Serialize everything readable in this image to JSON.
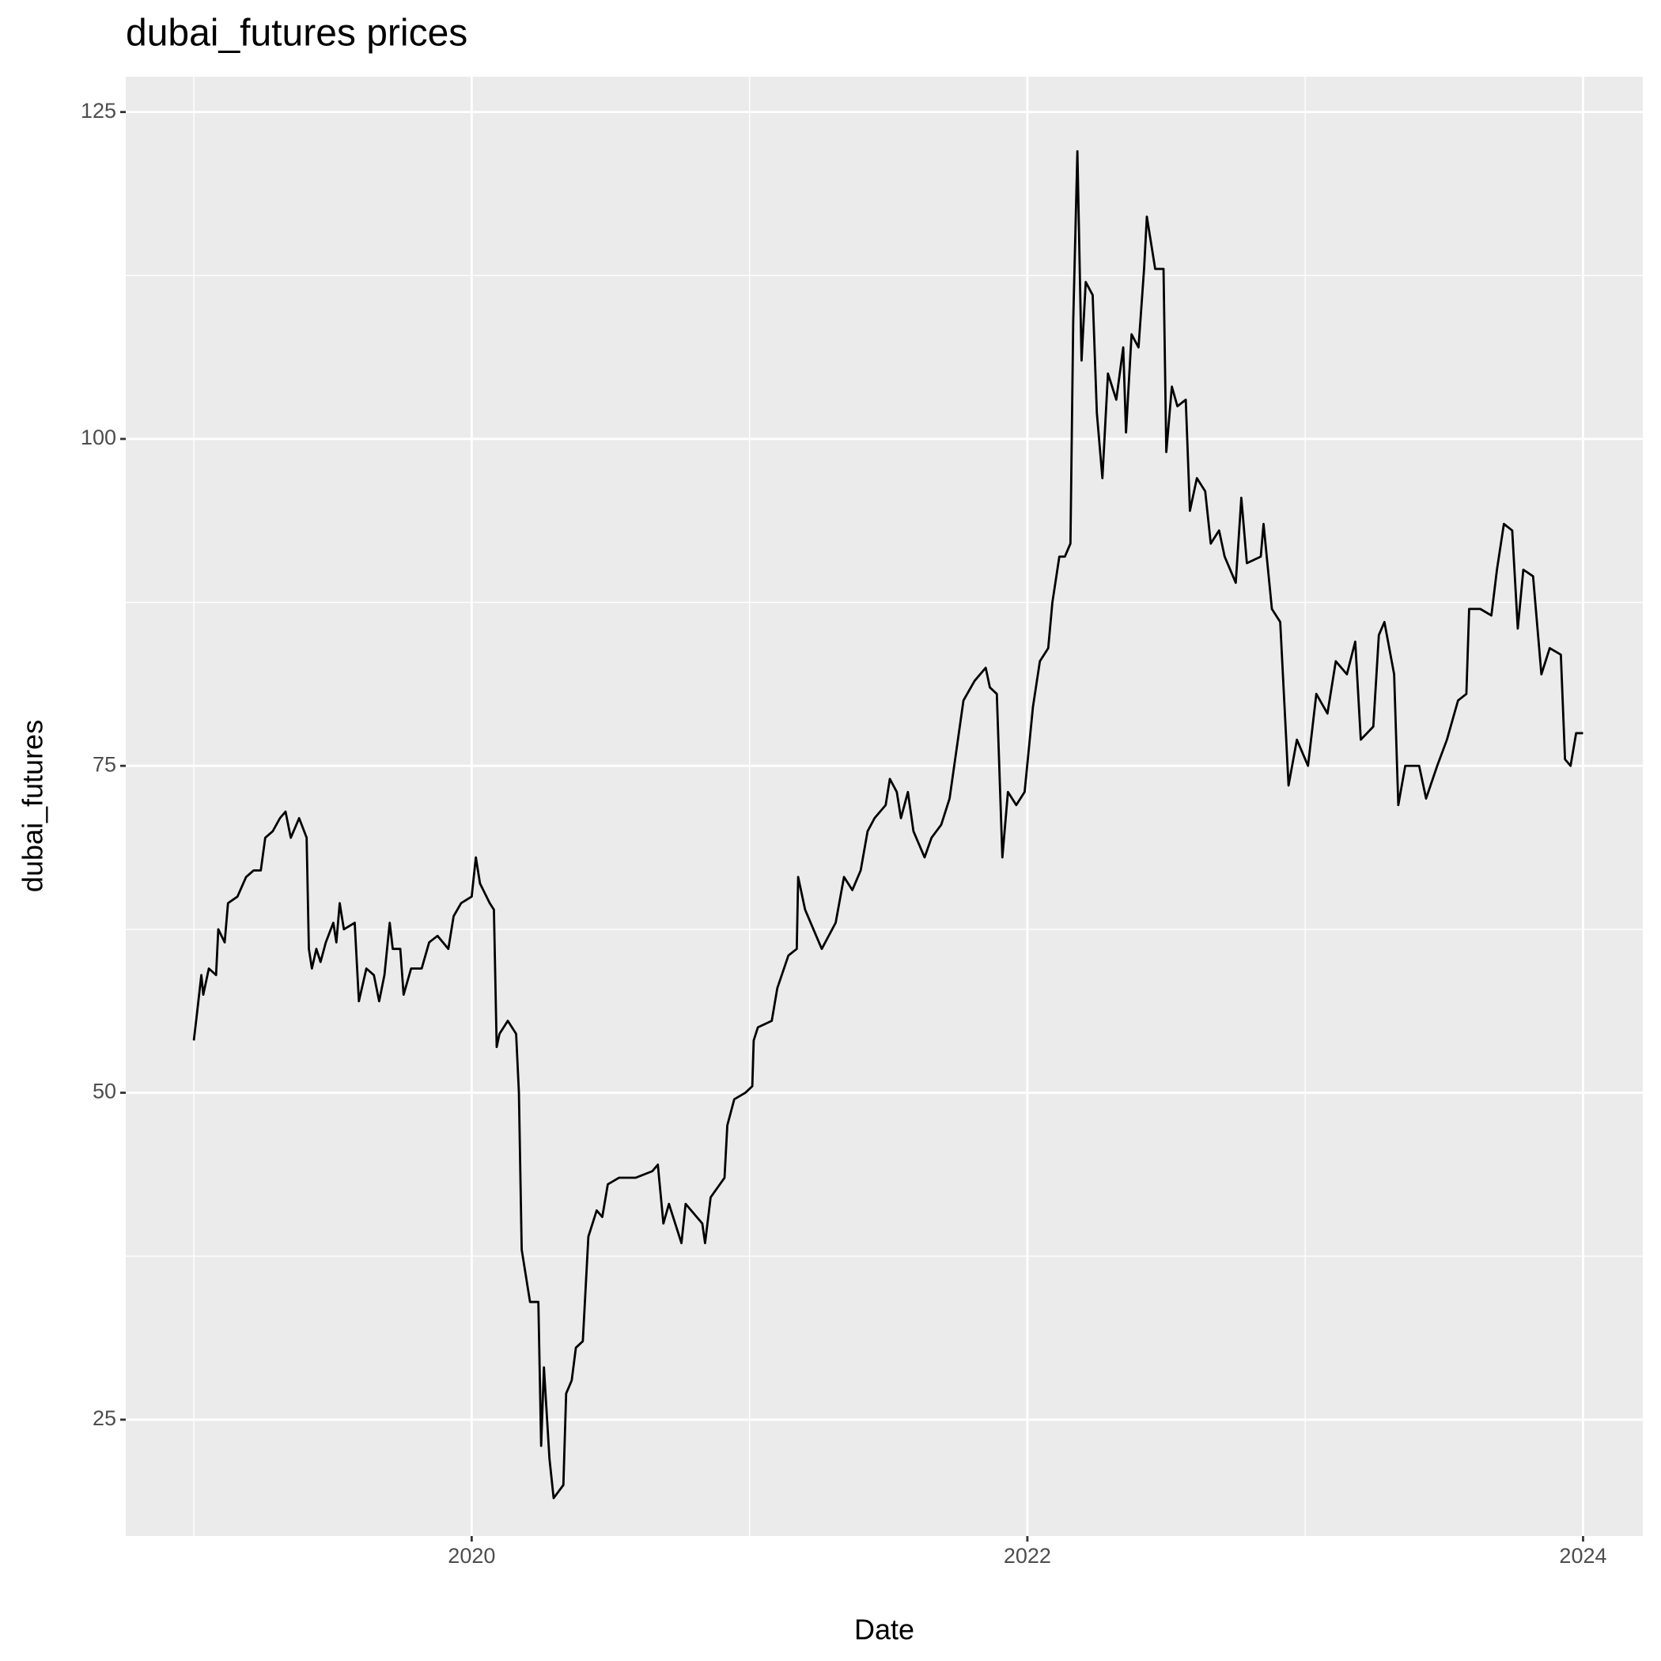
{
  "chart_data": {
    "type": "line",
    "title": "dubai_futures prices",
    "x_label": "Date",
    "y_label": "dubai_futures",
    "color": "#000000",
    "grid": true,
    "x": [
      2019.0,
      2019.011,
      2019.027,
      2019.034,
      2019.054,
      2019.08,
      2019.088,
      2019.111,
      2019.123,
      2019.157,
      2019.188,
      2019.215,
      2019.241,
      2019.257,
      2019.284,
      2019.31,
      2019.33,
      2019.349,
      2019.379,
      2019.406,
      2019.414,
      2019.425,
      2019.441,
      2019.456,
      2019.475,
      2019.502,
      2019.513,
      2019.525,
      2019.54,
      2019.579,
      2019.594,
      2019.621,
      2019.648,
      2019.667,
      2019.686,
      2019.705,
      2019.716,
      2019.743,
      2019.755,
      2019.782,
      2019.82,
      2019.847,
      2019.877,
      2019.916,
      2019.935,
      2019.962,
      2020.0,
      2020.015,
      2020.03,
      2020.065,
      2020.08,
      2020.09,
      2020.1,
      2020.13,
      2020.16,
      2020.17,
      2020.18,
      2020.195,
      2020.21,
      2020.24,
      2020.25,
      2020.26,
      2020.28,
      2020.295,
      2020.33,
      2020.34,
      2020.36,
      2020.375,
      2020.4,
      2020.42,
      2020.45,
      2020.47,
      2020.49,
      2020.53,
      2020.59,
      2020.65,
      2020.67,
      2020.69,
      2020.71,
      2020.755,
      2020.77,
      2020.83,
      2020.84,
      2020.86,
      2020.91,
      2020.92,
      2020.945,
      2020.985,
      2021.01,
      2021.015,
      2021.03,
      2021.08,
      2021.1,
      2021.14,
      2021.17,
      2021.175,
      2021.2,
      2021.23,
      2021.26,
      2021.31,
      2021.34,
      2021.37,
      2021.4,
      2021.425,
      2021.45,
      2021.49,
      2021.505,
      2021.53,
      2021.545,
      2021.57,
      2021.59,
      2021.63,
      2021.655,
      2021.69,
      2021.72,
      2021.75,
      2021.77,
      2021.81,
      2021.85,
      2021.865,
      2021.89,
      2021.91,
      2021.93,
      2021.96,
      2021.99,
      2022.02,
      2022.045,
      2022.075,
      2022.09,
      2022.115,
      2022.135,
      2022.155,
      2022.165,
      2022.18,
      2022.195,
      2022.21,
      2022.235,
      2022.25,
      2022.27,
      2022.29,
      2022.32,
      2022.345,
      2022.355,
      2022.375,
      2022.4,
      2022.42,
      2022.43,
      2022.46,
      2022.49,
      2022.5,
      2022.52,
      2022.54,
      2022.57,
      2022.585,
      2022.61,
      2022.64,
      2022.66,
      2022.69,
      2022.71,
      2022.75,
      2022.77,
      2022.79,
      2022.84,
      2022.85,
      2022.88,
      2022.91,
      2022.94,
      2022.97,
      2023.01,
      2023.04,
      2023.08,
      2023.11,
      2023.15,
      2023.18,
      2023.2,
      2023.245,
      2023.265,
      2023.285,
      2023.32,
      2023.335,
      2023.36,
      2023.41,
      2023.435,
      2023.475,
      2023.51,
      2023.55,
      2023.58,
      2023.59,
      2023.63,
      2023.67,
      2023.69,
      2023.715,
      2023.745,
      2023.765,
      2023.785,
      2023.82,
      2023.85,
      2023.88,
      2023.92,
      2023.935,
      2023.955,
      2023.975,
      2024.0
    ],
    "values": [
      54,
      56,
      59,
      57.5,
      59.5,
      59,
      62.5,
      61.5,
      64.5,
      65,
      66.5,
      67,
      67,
      69.5,
      70,
      71,
      71.5,
      69.5,
      71,
      69.5,
      61,
      59.5,
      61,
      60,
      61.5,
      63,
      61.5,
      64.5,
      62.5,
      63,
      57,
      59.5,
      59,
      57,
      59,
      63,
      61,
      61,
      57.5,
      59.5,
      59.5,
      61.5,
      62,
      61,
      63.5,
      64.5,
      65,
      68,
      66,
      64.5,
      64,
      53.5,
      54.5,
      55.5,
      54.5,
      50,
      38,
      36,
      34,
      34,
      23,
      29,
      22,
      19,
      20,
      27,
      28,
      30.5,
      31,
      39,
      41,
      40.5,
      43,
      43.5,
      43.5,
      44,
      44.5,
      40,
      41.5,
      38.5,
      41.5,
      40,
      38.5,
      42,
      43.5,
      47.5,
      49.5,
      50,
      50.5,
      54,
      55,
      55.5,
      58,
      60.5,
      61,
      66.5,
      64,
      62.5,
      61,
      63,
      66.5,
      65.5,
      67,
      70,
      71,
      72,
      74,
      73,
      71,
      73,
      70,
      68,
      69.5,
      70.5,
      72.5,
      77,
      80,
      81.5,
      82.5,
      81,
      80.5,
      68,
      73,
      72,
      73,
      79.5,
      83,
      84,
      87.5,
      91,
      91,
      92,
      109,
      122,
      106,
      112,
      111,
      102,
      97,
      105,
      103,
      107,
      100.5,
      108,
      107,
      113,
      117,
      113,
      113,
      99,
      104,
      102.5,
      103,
      94.5,
      97,
      96,
      92,
      93,
      91,
      89,
      95.5,
      90.5,
      91,
      93.5,
      87,
      86,
      73.5,
      77,
      75,
      80.5,
      79,
      83,
      82,
      84.5,
      77,
      78,
      85,
      86,
      82,
      72,
      75,
      75,
      72.5,
      75,
      77,
      80,
      80.5,
      87,
      87,
      86.5,
      90,
      93.5,
      93,
      85.5,
      90,
      89.5,
      82,
      84,
      83.5,
      75.5,
      75,
      77.5,
      77.5
    ],
    "xlim": [
      2018.755,
      2024.215
    ],
    "xticks": [
      2020,
      2022,
      2024
    ],
    "ylim": [
      16.1,
      127.7
    ],
    "yticks": [
      25,
      50,
      75,
      100,
      125
    ]
  }
}
